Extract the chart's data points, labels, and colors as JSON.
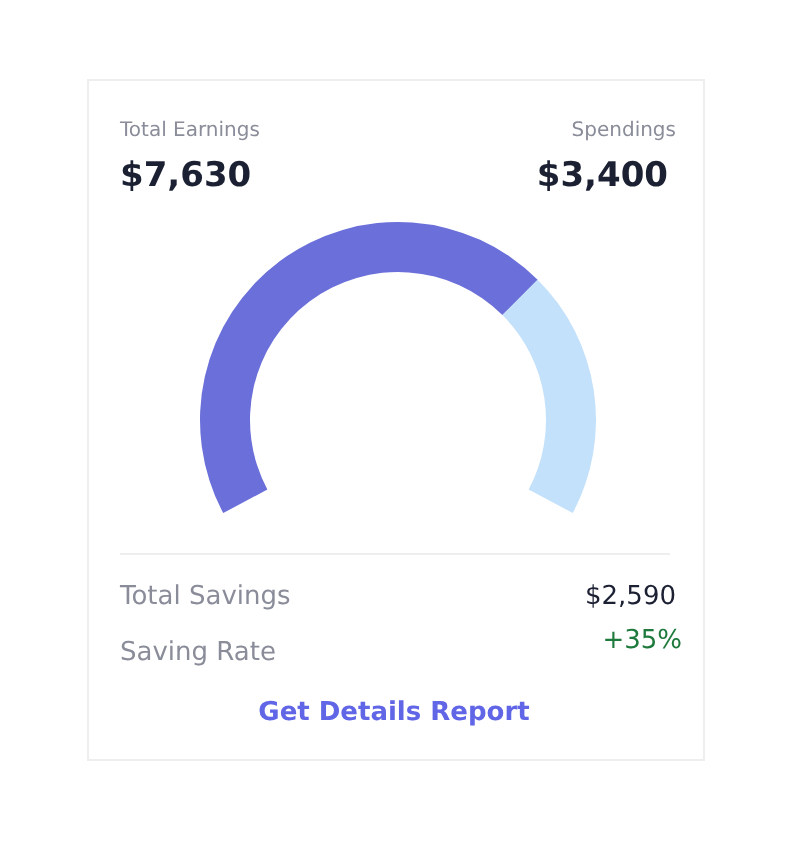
{
  "chart_data": {
    "type": "donut",
    "categories": [
      null,
      null
    ],
    "values": [
      69,
      31
    ],
    "colors": [
      "#6a6fd9",
      "#c3e1fb"
    ],
    "annotations": [
      "Total Earnings",
      "$7,630",
      "Spendings",
      "$3,400",
      "Total Savings",
      "$2,590",
      "Saving Rate",
      "+35%",
      "Get Details Report"
    ]
  }
}
